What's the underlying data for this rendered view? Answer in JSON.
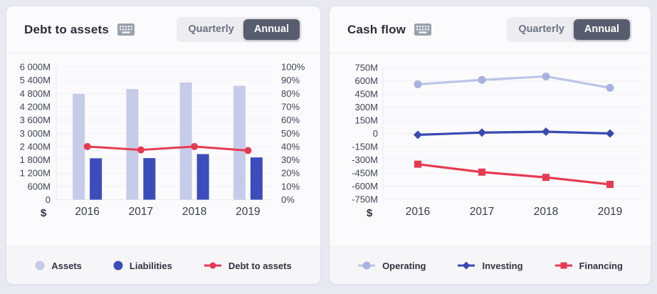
{
  "panels": [
    {
      "title": "Debt to assets",
      "icon": "keyboard-icon",
      "toggle": {
        "options": [
          "Quarterly",
          "Annual"
        ],
        "selected": "Annual"
      },
      "axis_prefix": "$",
      "legend": [
        {
          "label": "Assets",
          "marker": "circle",
          "color": "#c6cbe9"
        },
        {
          "label": "Liabilities",
          "marker": "circle",
          "color": "#3c4cba"
        },
        {
          "label": "Debt to assets",
          "marker": "line-dot",
          "color": "#e63a52"
        }
      ]
    },
    {
      "title": "Cash flow",
      "icon": "keyboard-icon",
      "toggle": {
        "options": [
          "Quarterly",
          "Annual"
        ],
        "selected": "Annual"
      },
      "axis_prefix": "$",
      "legend": [
        {
          "label": "Operating",
          "marker": "line-circle",
          "color": "#bdc4e7",
          "marker_color": "#a9b2de"
        },
        {
          "label": "Investing",
          "marker": "line-diamond",
          "color": "#3a49b0"
        },
        {
          "label": "Financing",
          "marker": "line-square",
          "color": "#e63a52"
        }
      ]
    }
  ],
  "chart_data": [
    {
      "type": "bar+line",
      "title": "Debt to assets",
      "categories": [
        "2016",
        "2017",
        "2018",
        "2019"
      ],
      "series": [
        {
          "name": "Assets",
          "type": "bar",
          "axis": "left",
          "color": "#c6cbe9",
          "values": [
            4780,
            5000,
            5300,
            5150
          ]
        },
        {
          "name": "Liabilities",
          "type": "bar",
          "axis": "left",
          "color": "#3c4cba",
          "values": [
            1870,
            1880,
            2060,
            1910
          ]
        },
        {
          "name": "Debt to assets",
          "type": "line",
          "axis": "right",
          "color": "#e63a52",
          "values": [
            40,
            37.5,
            40,
            37
          ]
        }
      ],
      "left_axis": {
        "min": 0,
        "max": 6000,
        "step": 600,
        "unit": "M",
        "ticks": [
          "6 000M",
          "5 400M",
          "4 800M",
          "4 200M",
          "3 600M",
          "3 000M",
          "2 400M",
          "1 800M",
          "1 200M",
          "600M",
          "0"
        ]
      },
      "right_axis": {
        "min": 0,
        "max": 100,
        "step": 10,
        "unit": "%",
        "ticks": [
          "100%",
          "90%",
          "80%",
          "70%",
          "60%",
          "50%",
          "40%",
          "30%",
          "20%",
          "10%",
          "0%"
        ]
      },
      "axis_prefix": "$",
      "grid": true,
      "legend_position": "bottom"
    },
    {
      "type": "line",
      "title": "Cash flow",
      "categories": [
        "2016",
        "2017",
        "2018",
        "2019"
      ],
      "series": [
        {
          "name": "Operating",
          "color": "#bdc4e7",
          "marker_color": "#a9b2de",
          "marker": "circle",
          "values": [
            560,
            610,
            650,
            520
          ]
        },
        {
          "name": "Investing",
          "color": "#3a49b0",
          "marker": "diamond",
          "values": [
            -15,
            10,
            20,
            0
          ]
        },
        {
          "name": "Financing",
          "color": "#e63a52",
          "marker": "square",
          "values": [
            -350,
            -440,
            -500,
            -580
          ]
        }
      ],
      "y_axis": {
        "min": -750,
        "max": 750,
        "step": 150,
        "unit": "M",
        "ticks": [
          "750M",
          "600M",
          "450M",
          "300M",
          "150M",
          "0",
          "-150M",
          "-300M",
          "-450M",
          "-600M",
          "-750M"
        ]
      },
      "axis_prefix": "$",
      "grid": true,
      "legend_position": "bottom"
    }
  ],
  "colors": {
    "page_bg": "#e8e9f1",
    "card_bg": "#fbfbfd",
    "gridline": "#f0f0f5",
    "zero_line": "#e7e8ee",
    "axis_text": "#3f4457",
    "year_text": "#373c4d",
    "title_text": "#2b2e39",
    "toggle_bg": "#ededf1",
    "toggle_active_bg": "#575c6e",
    "keyboard_icon": "#9aa0ae"
  }
}
